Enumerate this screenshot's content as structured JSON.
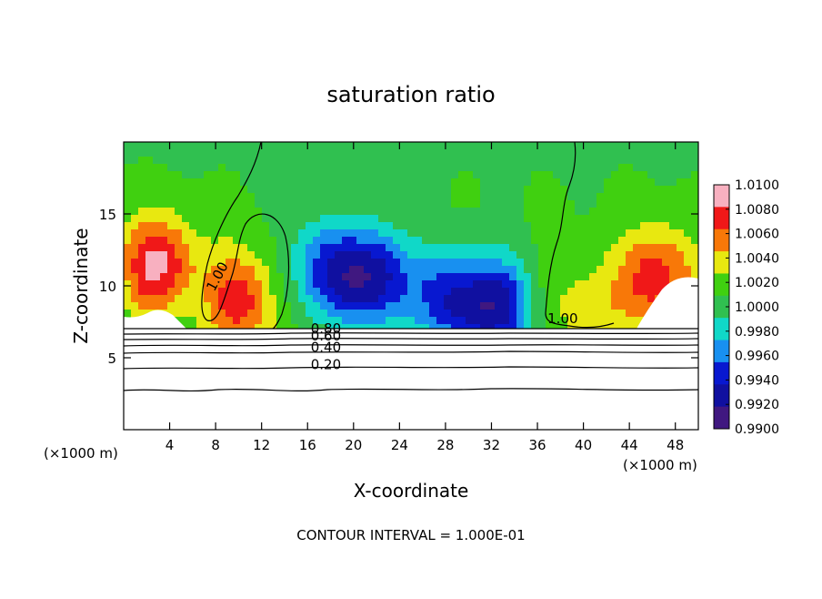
{
  "chart_data": {
    "type": "heatmap",
    "title": "saturation ratio",
    "xlabel": "X-coordinate",
    "ylabel": "Z-coordinate",
    "x_unit": "(×1000 m)",
    "x_unit_right": "(×1000 m)",
    "footer": "CONTOUR INTERVAL = 1.000E-01",
    "xlim": [
      0,
      50
    ],
    "ylim": [
      0,
      20
    ],
    "xticks": [
      4,
      8,
      12,
      16,
      20,
      24,
      28,
      32,
      36,
      40,
      44,
      48
    ],
    "yticks": [
      5,
      10,
      15
    ],
    "colorbar": {
      "min": 0.99,
      "max": 1.01,
      "labels": [
        "1.0100",
        "1.0080",
        "1.0060",
        "1.0040",
        "1.0020",
        "1.0000",
        "0.9980",
        "0.9960",
        "0.9940",
        "0.9920",
        "0.9900"
      ],
      "colors": [
        "#f8b0c0",
        "#f01818",
        "#f87808",
        "#e8e810",
        "#40d010",
        "#30c050",
        "#10d8c8",
        "#1890f0",
        "#0818d0",
        "#1010a0",
        "#401880"
      ]
    },
    "contour_labels": [
      {
        "text": "1.00",
        "x": 8.5,
        "y": 10.5
      },
      {
        "text": "1.00",
        "x": 38.2,
        "y": 7.4
      },
      {
        "text": "0.80",
        "x": 17.6,
        "y": 6.7
      },
      {
        "text": "0.60",
        "x": 17.6,
        "y": 6.2
      },
      {
        "text": "0.40",
        "x": 17.6,
        "y": 5.4
      },
      {
        "text": "0.20",
        "x": 17.6,
        "y": 4.2
      }
    ],
    "subsaturated_levels": [
      0.9,
      0.8,
      0.7,
      0.6,
      0.5,
      0.4,
      0.3,
      0.2,
      0.1
    ],
    "field_features": [
      {
        "name": "left-high",
        "x": 3.0,
        "y": 11.5,
        "value": 1.0075
      },
      {
        "name": "mid-left-high",
        "x": 10.2,
        "y": 9.0,
        "value": 1.006
      },
      {
        "name": "central-low",
        "x": 22.0,
        "y": 10.5,
        "value": 0.9915
      },
      {
        "name": "low-2",
        "x": 17.5,
        "y": 11.0,
        "value": 0.9935
      },
      {
        "name": "low-3",
        "x": 28.5,
        "y": 9.0,
        "value": 0.9935
      },
      {
        "name": "low-4",
        "x": 32.5,
        "y": 8.5,
        "value": 0.9925
      },
      {
        "name": "right-high",
        "x": 46.5,
        "y": 10.5,
        "value": 1.0065
      },
      {
        "name": "right-mid-high",
        "x": 40.5,
        "y": 8.5,
        "value": 1.003
      }
    ]
  }
}
